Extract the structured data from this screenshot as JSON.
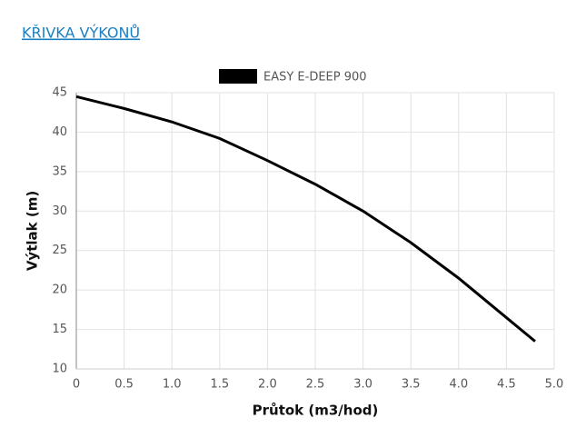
{
  "header": {
    "title": "KŘIVKA VÝKONŮ"
  },
  "chart_data": {
    "type": "line",
    "x_label": "Průtok (m3/hod)",
    "y_label": "Výtlak (m)",
    "x": [
      0,
      0.5,
      1.0,
      1.5,
      2.0,
      2.5,
      3.0,
      3.5,
      4.0,
      4.5,
      4.8
    ],
    "series": [
      {
        "name": "EASY E-DEEP 900",
        "color": "#000000",
        "values": [
          44.5,
          43,
          41.3,
          39.2,
          36.4,
          33.4,
          30,
          26,
          21.5,
          16.5,
          13.5
        ]
      }
    ],
    "xlim": [
      0,
      5
    ],
    "ylim": [
      10,
      45
    ],
    "xticks": [
      0,
      0.5,
      {
        "value": 1,
        "label": "1.0"
      },
      1.5,
      {
        "value": 2,
        "label": "2.0"
      },
      2.5,
      {
        "value": 3,
        "label": "3.0"
      },
      3.5,
      {
        "value": 4,
        "label": "4.0"
      },
      4.5,
      {
        "value": 5,
        "label": "5.0"
      }
    ],
    "yticks": [
      10,
      15,
      20,
      25,
      30,
      35,
      40,
      45
    ],
    "grid": true
  }
}
